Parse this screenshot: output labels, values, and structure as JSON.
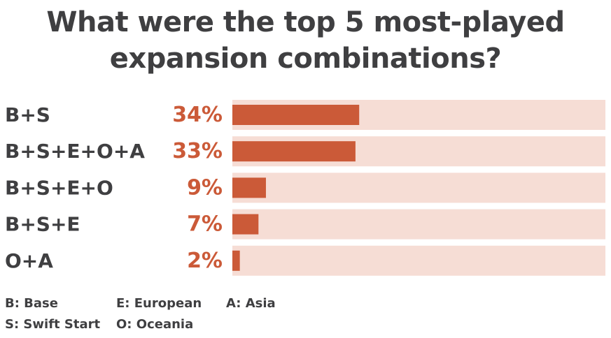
{
  "chart_data": {
    "type": "bar",
    "orientation": "horizontal",
    "title": "What were the top 5 most-played expansion combinations?",
    "title_lines": [
      "What were the top 5 most-played",
      "expansion combinations?"
    ],
    "categories": [
      "B+S",
      "B+S+E+O+A",
      "B+S+E+O",
      "B+S+E",
      "O+A"
    ],
    "values": [
      34,
      33,
      9,
      7,
      2
    ],
    "value_labels": [
      "34%",
      "33%",
      "9%",
      "7%",
      "2%"
    ],
    "xlim": [
      0,
      100
    ],
    "grid": false,
    "colors": {
      "bar": "#cb5a38",
      "track": "#f6ddd5",
      "text": "#3f3f41"
    }
  },
  "legend": [
    {
      "text": "B: Base"
    },
    {
      "text": "E: European"
    },
    {
      "text": "A: Asia"
    },
    {
      "text": "S: Swift Start"
    },
    {
      "text": "O: Oceania"
    }
  ]
}
